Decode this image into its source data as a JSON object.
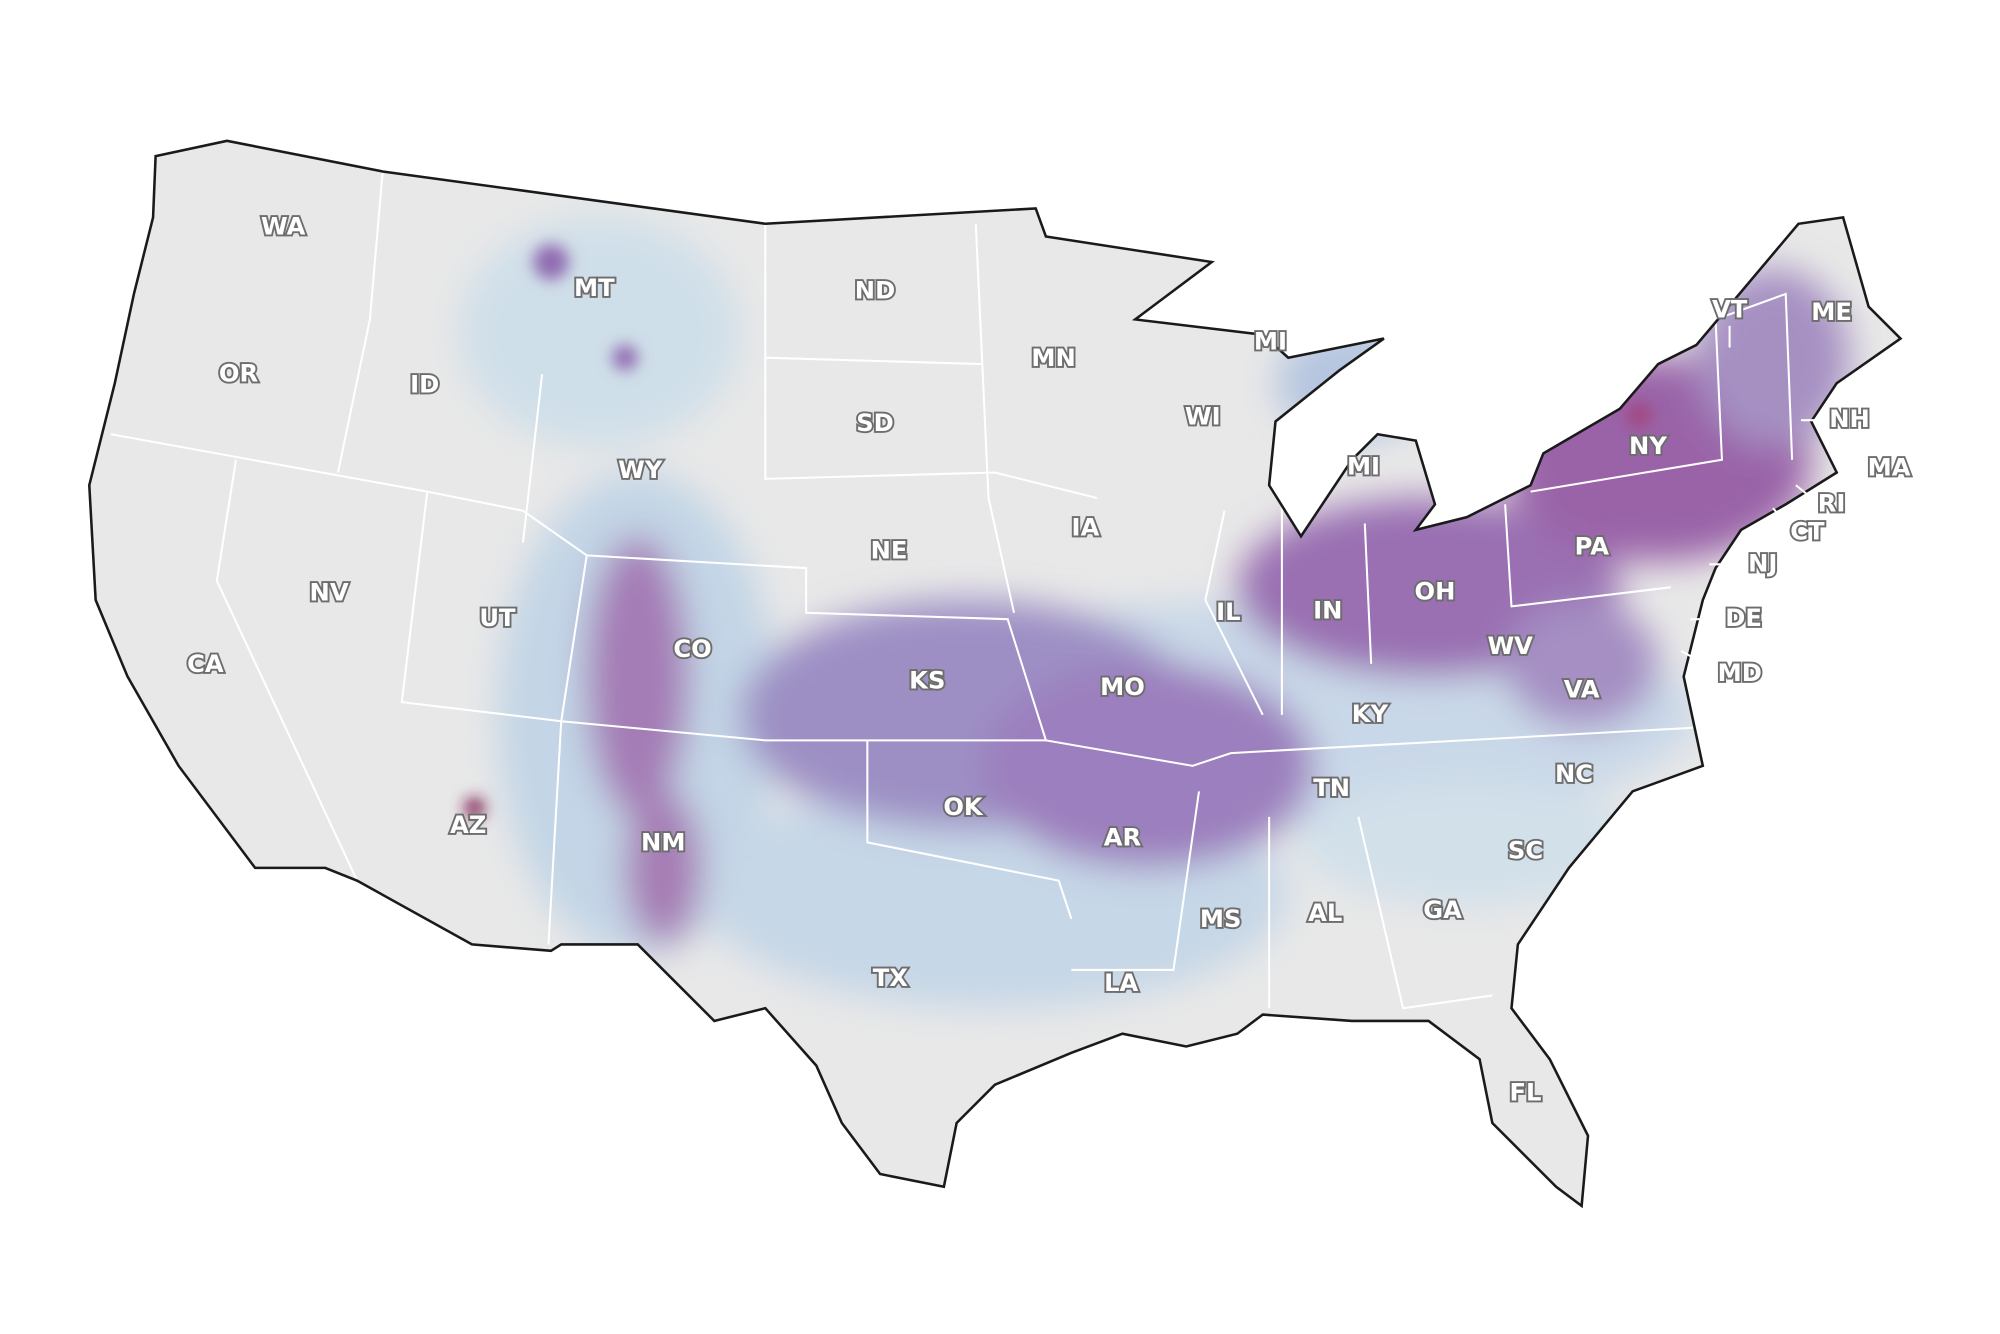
{
  "state_labels": [
    "WA",
    "OR",
    "CA",
    "NV",
    "ID",
    "MT",
    "WY",
    "UT",
    "AZ",
    "CO",
    "NM",
    "ND",
    "SD",
    "NE",
    "KS",
    "OK",
    "TX",
    "MN",
    "IA",
    "MO",
    "AR",
    "LA",
    "WI",
    "IL",
    "MS",
    "MI",
    "MI",
    "IN",
    "OH",
    "KY",
    "TN",
    "AL",
    "GA",
    "FL",
    "SC",
    "NC",
    "VA",
    "WV",
    "PA",
    "NY",
    "VT",
    "ME",
    "NH",
    "MA",
    "RI",
    "CT",
    "NJ",
    "DE",
    "MD"
  ]
}
